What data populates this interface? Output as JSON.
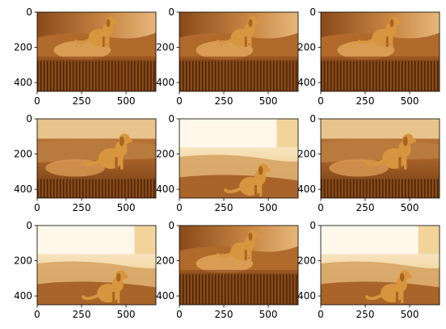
{
  "chart_data": {
    "type": "image_grid",
    "title": "",
    "rows": 3,
    "cols": 3,
    "image_extent": {
      "x": [
        0,
        668
      ],
      "y": [
        450,
        0
      ]
    },
    "xticks": [
      0,
      250,
      500
    ],
    "yticks": [
      0,
      200,
      400
    ],
    "tile_labels": [
      "golden-retriever-stretched-variant",
      "golden-retriever-stretched-variant",
      "golden-retriever-stretched-variant",
      "golden-retriever-sitting",
      "golden-retriever-shifted-down-bright-sky",
      "golden-retriever-sitting",
      "golden-retriever-shifted-down-bright-sky",
      "golden-retriever-stretched-variant",
      "golden-retriever-shifted-down-bright-sky"
    ],
    "palette": {
      "sky_light": "#f6e6c8",
      "sky_bright": "#fff7e6",
      "hill_orange": "#c9853d",
      "ground_dark": "#7a3f12",
      "dog_gold": "#d8953f",
      "stripe_dark": "#5d2f0d"
    }
  }
}
